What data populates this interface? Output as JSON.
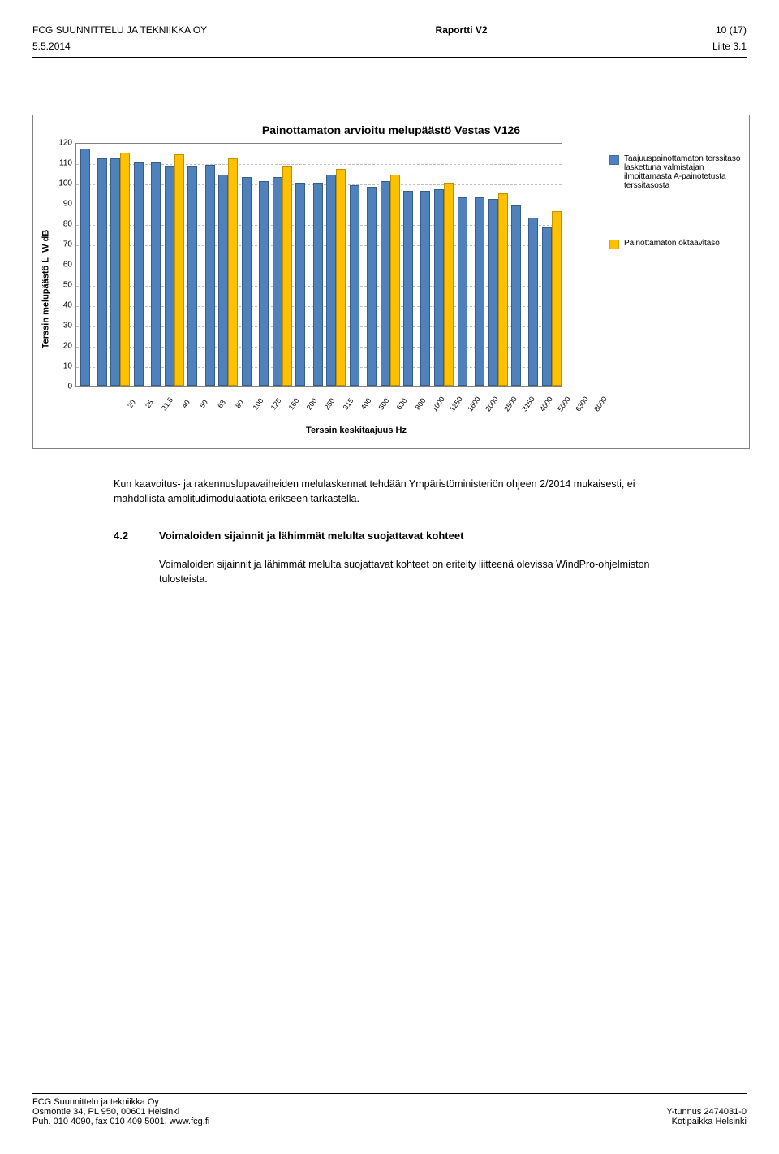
{
  "header": {
    "left": "FCG SUUNNITTELU JA TEKNIIKKA OY",
    "mid_label": "Raportti V2",
    "right": "10 (17)",
    "date": "5.5.2014",
    "liite": "Liite 3.1"
  },
  "chart": {
    "title": "Painottamaton arvioitu melupäästö Vestas V126",
    "y_label": "Terssin melupäästö L_W dB",
    "x_label": "Terssin keskitaajuus Hz",
    "y_max": 120,
    "y_step": 10,
    "grid_color": "#bfbfbf",
    "bar_color_blue": "#4f81bd",
    "bar_border_blue": "#385d8a",
    "bar_color_yellow": "#ffc000",
    "bar_border_yellow": "#bf9000",
    "legend1": "Taajuuspainottamaton terssitaso laskettuna valmistajan ilmoittamasta A-painotetusta terssitasosta",
    "legend2": "Painottamaton oktaavitaso",
    "categories": [
      "20",
      "25",
      "31,5",
      "40",
      "50",
      "63",
      "80",
      "100",
      "125",
      "160",
      "200",
      "250",
      "315",
      "400",
      "500",
      "630",
      "800",
      "1000",
      "1250",
      "1600",
      "2000",
      "2500",
      "3150",
      "4000",
      "5000",
      "6300",
      "8000"
    ],
    "blue_values": [
      117,
      112,
      112,
      110,
      110,
      108,
      108,
      109,
      104,
      103,
      101,
      103,
      100,
      100,
      104,
      99,
      98,
      101,
      96,
      96,
      97,
      93,
      93,
      92,
      89,
      83,
      78
    ],
    "octave_at": {
      "31,5": 115,
      "63": 114,
      "125": 112,
      "250": 108,
      "500": 107,
      "1000": 104,
      "2000": 100,
      "4000": 95,
      "8000": 86
    }
  },
  "body": {
    "para1": "Kun kaavoitus- ja rakennuslupavaiheiden melulaskennat tehdään Ympäristöministeriön ohjeen 2/2014 mukaisesti, ei mahdollista amplitudimodulaatiota erikseen tarkastella.",
    "sec_num": "4.2",
    "sec_title": "Voimaloiden sijainnit ja lähimmät melulta suojattavat kohteet",
    "para2": "Voimaloiden sijainnit ja lähimmät melulta suojattavat kohteet on eritelty liitteenä olevissa WindPro-ohjelmiston tulosteista."
  },
  "footer": {
    "l1": "FCG Suunnittelu ja tekniikka Oy",
    "l2": "Osmontie 34, PL 950, 00601 Helsinki",
    "l3": "Puh. 010 4090, fax 010 409 5001, www.fcg.fi",
    "r1": "Y-tunnus 2474031-0",
    "r2": "Kotipaikka Helsinki"
  }
}
